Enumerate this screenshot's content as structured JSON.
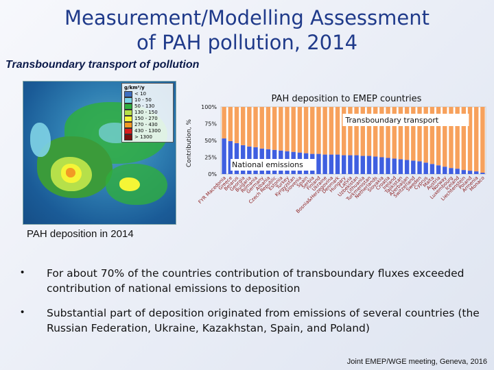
{
  "slide": {
    "title_line1": "Measurement/Modelling Assessment",
    "title_line2": "of PAH pollution, 2014",
    "subtitle": "Transboundary transport of pollution",
    "map_caption": "PAH deposition in 2014",
    "footer": "Joint EMEP/WGE meeting, Geneva, 2016"
  },
  "map_legend": {
    "unit": "g/km²/y",
    "items": [
      {
        "label": "< 10",
        "color": "#3f6fc0"
      },
      {
        "label": "10 - 50",
        "color": "#7fd3e6"
      },
      {
        "label": "50 - 130",
        "color": "#2fae3f"
      },
      {
        "label": "130 - 150",
        "color": "#b6e04a"
      },
      {
        "label": "150 - 270",
        "color": "#f5f536"
      },
      {
        "label": "270 - 430",
        "color": "#f29a25"
      },
      {
        "label": "430 - 1300",
        "color": "#d81e1e"
      },
      {
        "label": "> 1300",
        "color": "#7a1010"
      }
    ]
  },
  "bullets": [
    {
      "text": "For about 70% of the countries contribution of transboundary fluxes exceeded contribution of national emissions to deposition"
    },
    {
      "text": "Substantial part of deposition originated from emissions of several countries (the Russian Federation, Ukraine, Kazakhstan, Spain, and Poland)"
    }
  ],
  "chart_data": {
    "type": "bar",
    "stacked": true,
    "title": "PAH deposition to EMEP countries",
    "ylabel": "Contribution, %",
    "ylim": [
      0,
      100
    ],
    "yticks": [
      "0%",
      "25%",
      "50%",
      "75%",
      "100%"
    ],
    "annotations": [
      "Transboundary transport",
      "National emissions"
    ],
    "colors": {
      "national": "#3f5fe0",
      "transboundary": "#f7a15c"
    },
    "categories": [
      "FYR Macedonia",
      "Greece",
      "Belarus",
      "Georgia",
      "Bulgaria",
      "Romania",
      "Germany",
      "Albania",
      "Czech Republic",
      "Estonia",
      "Turkey",
      "Kyrgyzstan",
      "Slovenia",
      "Spain",
      "Serbia",
      "Finland",
      "Ukraine",
      "Bosnia&Herzegovina",
      "Denmark",
      "Hungary",
      "Latvia",
      "Uzbekistan",
      "Lithuania",
      "Turkmenistan",
      "Netherlands",
      "Slovakia",
      "Croatia",
      "Ireland",
      "Tajikistan",
      "Azerbaijan",
      "Switzerland",
      "Sweden",
      "Cyprus",
      "Malta",
      "Austria",
      "Norway",
      "Luxembourg",
      "Iceland",
      "Liechtenstein",
      "Poland",
      "Armenia",
      "Monaco"
    ],
    "series": [
      {
        "name": "National emissions",
        "values": [
          53,
          49,
          46,
          43,
          41,
          40,
          38,
          37,
          36,
          35,
          34,
          33,
          32,
          31,
          30,
          30,
          29,
          29,
          29,
          28,
          28,
          28,
          27,
          27,
          26,
          25,
          24,
          23,
          22,
          21,
          20,
          19,
          17,
          15,
          13,
          11,
          9,
          8,
          6,
          5,
          4,
          2
        ]
      },
      {
        "name": "Transboundary transport",
        "values": [
          47,
          51,
          54,
          57,
          59,
          60,
          62,
          63,
          64,
          65,
          66,
          67,
          68,
          69,
          70,
          70,
          71,
          71,
          71,
          72,
          72,
          72,
          73,
          73,
          74,
          75,
          76,
          77,
          78,
          79,
          80,
          81,
          83,
          85,
          87,
          89,
          91,
          92,
          94,
          95,
          96,
          98
        ]
      }
    ]
  }
}
